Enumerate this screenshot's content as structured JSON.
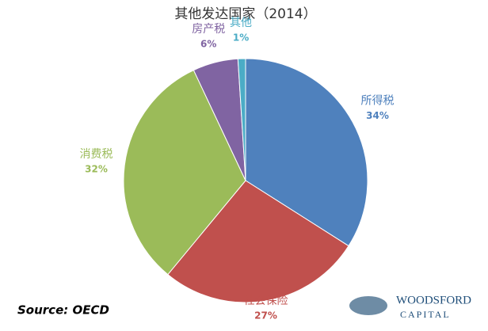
{
  "chart_data": {
    "type": "pie",
    "title": "其他发达国家（2014）",
    "categories": [
      "所得税",
      "社会保险",
      "消费税",
      "房产税",
      "其他"
    ],
    "values": [
      34,
      27,
      32,
      6,
      1
    ],
    "value_labels": [
      "34%",
      "27%",
      "32%",
      "6%",
      "1%"
    ],
    "colors": [
      "#4f81bd",
      "#c0504d",
      "#9bbb59",
      "#8064a2",
      "#4bacc6"
    ],
    "source": "Source: OECD",
    "logo": [
      "WOODSFORD",
      "CAPITAL"
    ]
  }
}
